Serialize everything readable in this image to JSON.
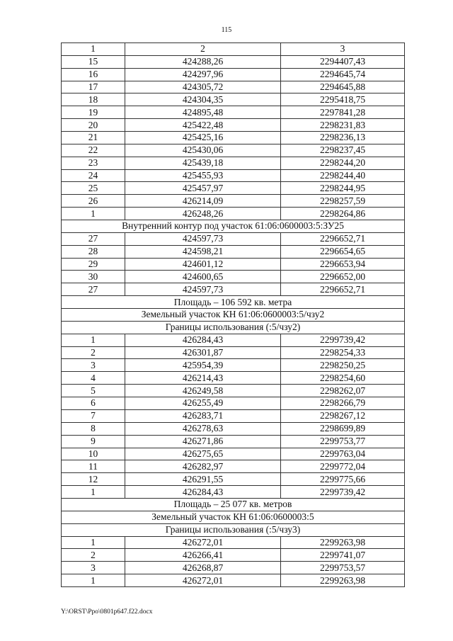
{
  "page_number": "115",
  "table": {
    "header": [
      "1",
      "2",
      "3"
    ],
    "rows": [
      {
        "n": "15",
        "x": "424288,26",
        "y": "2294407,43"
      },
      {
        "n": "16",
        "x": "424297,96",
        "y": "2294645,74"
      },
      {
        "n": "17",
        "x": "424305,72",
        "y": "2294645,88"
      },
      {
        "n": "18",
        "x": "424304,35",
        "y": "2295418,75"
      },
      {
        "n": "19",
        "x": "424895,48",
        "y": "2297841,28"
      },
      {
        "n": "20",
        "x": "425422,48",
        "y": "2298231,83"
      },
      {
        "n": "21",
        "x": "425425,16",
        "y": "2298236,13"
      },
      {
        "n": "22",
        "x": "425430,06",
        "y": "2298237,45"
      },
      {
        "n": "23",
        "x": "425439,18",
        "y": "2298244,20"
      },
      {
        "n": "24",
        "x": "425455,93",
        "y": "2298244,40"
      },
      {
        "n": "25",
        "x": "425457,97",
        "y": "2298244,95"
      },
      {
        "n": "26",
        "x": "426214,09",
        "y": "2298257,59"
      },
      {
        "n": "1",
        "x": "426248,26",
        "y": "2298264,86"
      },
      {
        "span": "Внутренний контур под участок 61:06:0600003:5:ЗУ25"
      },
      {
        "n": "27",
        "x": "424597,73",
        "y": "2296652,71"
      },
      {
        "n": "28",
        "x": "424598,21",
        "y": "2296654,65"
      },
      {
        "n": "29",
        "x": "424601,12",
        "y": "2296653,94"
      },
      {
        "n": "30",
        "x": "424600,65",
        "y": "2296652,00"
      },
      {
        "n": "27",
        "x": "424597,73",
        "y": "2296652,71"
      },
      {
        "span": "Площадь – 106 592 кв. метра"
      },
      {
        "span": "Земельный участок КН 61:06:0600003:5/чзу2"
      },
      {
        "span": "Границы использования (:5/чзу2)"
      },
      {
        "n": "1",
        "x": "426284,43",
        "y": "2299739,42"
      },
      {
        "n": "2",
        "x": "426301,87",
        "y": "2298254,33"
      },
      {
        "n": "3",
        "x": "425954,39",
        "y": "2298250,25"
      },
      {
        "n": "4",
        "x": "426214,43",
        "y": "2298254,60"
      },
      {
        "n": "5",
        "x": "426249,58",
        "y": "2298262,07"
      },
      {
        "n": "6",
        "x": "426255,49",
        "y": "2298266,79"
      },
      {
        "n": "7",
        "x": "426283,71",
        "y": "2298267,12"
      },
      {
        "n": "8",
        "x": "426278,63",
        "y": "2298699,89"
      },
      {
        "n": "9",
        "x": "426271,86",
        "y": "2299753,77"
      },
      {
        "n": "10",
        "x": "426275,65",
        "y": "2299763,04"
      },
      {
        "n": "11",
        "x": "426282,97",
        "y": "2299772,04"
      },
      {
        "n": "12",
        "x": "426291,55",
        "y": "2299775,66"
      },
      {
        "n": "1",
        "x": "426284,43",
        "y": "2299739,42"
      },
      {
        "span": "Площадь – 25 077 кв. метров"
      },
      {
        "span": "Земельный участок КН 61:06:0600003:5"
      },
      {
        "span": "Границы использования (:5/чзу3)"
      },
      {
        "n": "1",
        "x": "426272,01",
        "y": "2299263,98"
      },
      {
        "n": "2",
        "x": "426266,41",
        "y": "2299741,07"
      },
      {
        "n": "3",
        "x": "426268,87",
        "y": "2299753,57"
      },
      {
        "n": "1",
        "x": "426272,01",
        "y": "2299263,98"
      }
    ]
  },
  "footer": "Y:\\ORST\\Рро\\0801p647.f22.docx"
}
